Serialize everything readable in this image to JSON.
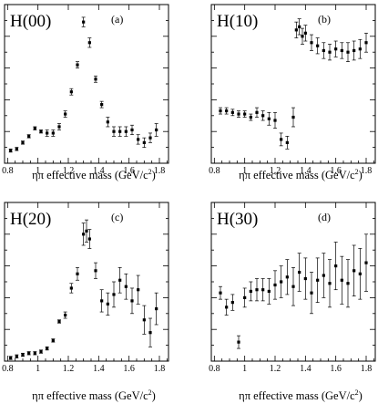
{
  "chart_data": [
    {
      "type": "scatter",
      "title": "H(00)",
      "tag": "(a)",
      "xlabel": "ηπ effective mass (GeV/c",
      "xlabel_sup": "2",
      "xlabel_end": ")",
      "xlim": [
        0.78,
        1.86
      ],
      "ylim": [
        0,
        1.0
      ],
      "xticks": [
        "0.8",
        "1",
        "1.2",
        "1.4",
        "1.6",
        "1.8"
      ],
      "x": [
        0.82,
        0.86,
        0.9,
        0.94,
        0.98,
        1.02,
        1.06,
        1.1,
        1.14,
        1.18,
        1.22,
        1.26,
        1.3,
        1.34,
        1.38,
        1.42,
        1.46,
        1.5,
        1.54,
        1.58,
        1.62,
        1.66,
        1.7,
        1.74,
        1.78
      ],
      "y": [
        0.08,
        0.09,
        0.13,
        0.17,
        0.22,
        0.2,
        0.19,
        0.19,
        0.23,
        0.31,
        0.45,
        0.62,
        0.89,
        0.76,
        0.53,
        0.37,
        0.26,
        0.2,
        0.2,
        0.2,
        0.21,
        0.15,
        0.13,
        0.16,
        0.21
      ],
      "err": [
        0.01,
        0.01,
        0.01,
        0.01,
        0.01,
        0.01,
        0.02,
        0.02,
        0.02,
        0.02,
        0.02,
        0.02,
        0.03,
        0.03,
        0.02,
        0.02,
        0.03,
        0.03,
        0.03,
        0.03,
        0.03,
        0.03,
        0.03,
        0.03,
        0.04
      ]
    },
    {
      "type": "scatter",
      "title": "H(10)",
      "tag": "(b)",
      "xlabel": "ηπ effective mass (GeV/c",
      "xlabel_sup": "2",
      "xlabel_end": ")",
      "xlim": [
        0.78,
        1.86
      ],
      "ylim": [
        0,
        1.0
      ],
      "xticks": [
        "0.8",
        "1",
        "1.2",
        "1.4",
        "1.6",
        "1.8"
      ],
      "x": [
        0.84,
        0.88,
        0.92,
        0.96,
        1.0,
        1.04,
        1.08,
        1.12,
        1.16,
        1.2,
        1.24,
        1.28,
        1.32,
        1.34,
        1.36,
        1.38,
        1.4,
        1.44,
        1.48,
        1.52,
        1.56,
        1.6,
        1.64,
        1.68,
        1.72,
        1.76,
        1.8
      ],
      "y": [
        0.33,
        0.33,
        0.32,
        0.31,
        0.31,
        0.29,
        0.32,
        0.3,
        0.28,
        0.27,
        0.15,
        0.13,
        0.29,
        0.84,
        0.86,
        0.8,
        0.82,
        0.76,
        0.74,
        0.71,
        0.7,
        0.72,
        0.71,
        0.7,
        0.71,
        0.72,
        0.76
      ],
      "err": [
        0.02,
        0.02,
        0.02,
        0.02,
        0.02,
        0.02,
        0.03,
        0.03,
        0.04,
        0.05,
        0.04,
        0.04,
        0.06,
        0.05,
        0.05,
        0.05,
        0.05,
        0.05,
        0.05,
        0.05,
        0.05,
        0.05,
        0.05,
        0.06,
        0.06,
        0.06,
        0.06
      ]
    },
    {
      "type": "scatter",
      "title": "H(20)",
      "tag": "(c)",
      "xlabel": "ηπ effective mass (GeV/c",
      "xlabel_sup": "2",
      "xlabel_end": ")",
      "xlim": [
        0.78,
        1.86
      ],
      "ylim": [
        0,
        1.0
      ],
      "xticks": [
        "0.8",
        "1",
        "1.2",
        "1.4",
        "1.6",
        "1.8"
      ],
      "x": [
        0.82,
        0.86,
        0.9,
        0.94,
        0.98,
        1.02,
        1.06,
        1.1,
        1.14,
        1.18,
        1.22,
        1.26,
        1.3,
        1.32,
        1.34,
        1.38,
        1.42,
        1.46,
        1.5,
        1.54,
        1.58,
        1.62,
        1.66,
        1.7,
        1.74,
        1.78
      ],
      "y": [
        0.02,
        0.03,
        0.04,
        0.05,
        0.05,
        0.06,
        0.08,
        0.13,
        0.25,
        0.29,
        0.46,
        0.55,
        0.8,
        0.82,
        0.77,
        0.57,
        0.38,
        0.36,
        0.42,
        0.51,
        0.47,
        0.38,
        0.45,
        0.26,
        0.18,
        0.33
      ],
      "err": [
        0.01,
        0.01,
        0.01,
        0.01,
        0.01,
        0.01,
        0.01,
        0.01,
        0.01,
        0.02,
        0.03,
        0.04,
        0.07,
        0.07,
        0.06,
        0.05,
        0.07,
        0.07,
        0.08,
        0.08,
        0.08,
        0.08,
        0.09,
        0.09,
        0.09,
        0.1
      ]
    },
    {
      "type": "scatter",
      "title": "H(30)",
      "tag": "(d)",
      "xlabel": "ηπ effective mass (GeV/c",
      "xlabel_sup": "2",
      "xlabel_end": ")",
      "xlim": [
        0.78,
        1.86
      ],
      "ylim": [
        0,
        1.0
      ],
      "xticks": [
        "0.8",
        "1",
        "1.2",
        "1.4",
        "1.6",
        "1.8"
      ],
      "x": [
        0.84,
        0.88,
        0.92,
        0.96,
        1.0,
        1.04,
        1.08,
        1.12,
        1.16,
        1.2,
        1.24,
        1.28,
        1.32,
        1.36,
        1.4,
        1.44,
        1.48,
        1.52,
        1.56,
        1.6,
        1.64,
        1.68,
        1.72,
        1.76,
        1.8
      ],
      "y": [
        0.43,
        0.34,
        0.37,
        0.12,
        0.4,
        0.44,
        0.45,
        0.45,
        0.44,
        0.48,
        0.5,
        0.53,
        0.47,
        0.56,
        0.52,
        0.43,
        0.51,
        0.54,
        0.49,
        0.6,
        0.51,
        0.49,
        0.57,
        0.55,
        0.62
      ],
      "err": [
        0.04,
        0.05,
        0.05,
        0.04,
        0.06,
        0.06,
        0.07,
        0.07,
        0.08,
        0.09,
        0.1,
        0.11,
        0.12,
        0.12,
        0.13,
        0.13,
        0.14,
        0.14,
        0.15,
        0.15,
        0.15,
        0.15,
        0.16,
        0.16,
        0.18
      ]
    }
  ]
}
